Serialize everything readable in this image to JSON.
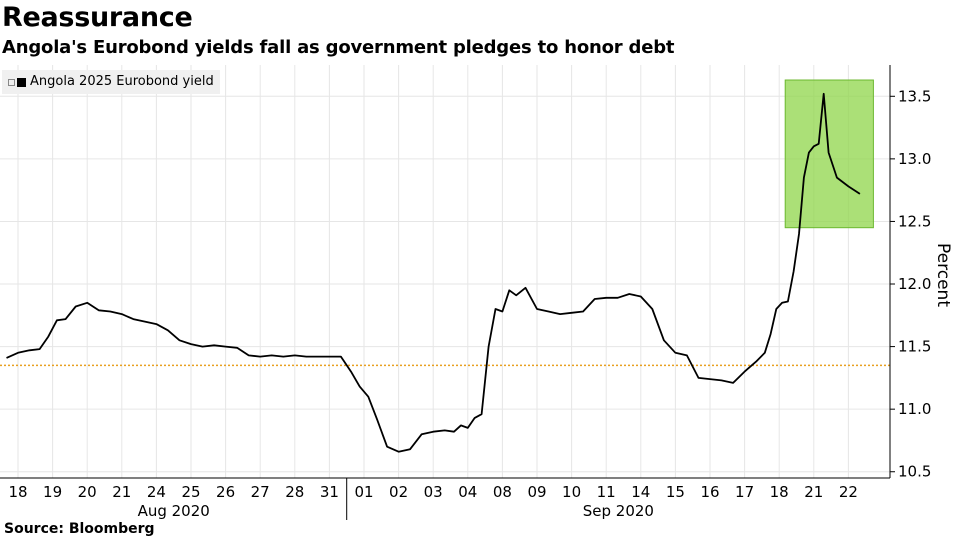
{
  "title": "Reassurance",
  "subtitle": "Angola's Eurobond yields fall as government pledges to honor debt",
  "source": "Source: Bloomberg",
  "colors": {
    "line": "#000000",
    "reference_line": "#e8a020",
    "highlight_fill": "#8fd64a",
    "highlight_stroke": "#6cb830",
    "grid": "#e6e6e6"
  },
  "chart_data": {
    "type": "line",
    "title": "Reassurance",
    "subtitle": "Angola's Eurobond yields fall as government pledges to honor debt",
    "ylabel": "Percent",
    "ylim": [
      10.45,
      13.75
    ],
    "y_ticks": [
      "10.5",
      "11.0",
      "11.5",
      "12.0",
      "12.5",
      "13.0",
      "13.5"
    ],
    "y_tick_values": [
      10.5,
      11.0,
      11.5,
      12.0,
      12.5,
      13.0,
      13.5
    ],
    "x_tick_labels": [
      "18",
      "19",
      "20",
      "21",
      "24",
      "25",
      "26",
      "27",
      "28",
      "31",
      "01",
      "02",
      "03",
      "04",
      "08",
      "09",
      "10",
      "11",
      "14",
      "15",
      "16",
      "17",
      "18",
      "21",
      "22"
    ],
    "month_labels": [
      "Aug 2020",
      "Sep 2020"
    ],
    "legend": [
      "Angola 2025 Eurobond yield"
    ],
    "legend_position": "top-left",
    "reference_line": 11.35,
    "highlight": {
      "x_range": [
        "Sep 18",
        "Sep 22"
      ],
      "y_range": [
        12.45,
        13.63
      ]
    },
    "series": [
      {
        "name": "Angola 2025 Eurobond yield",
        "x": [
          "Aug 18",
          "Aug 18",
          "Aug 18",
          "Aug 19",
          "Aug 19",
          "Aug 19",
          "Aug 19",
          "Aug 20",
          "Aug 20",
          "Aug 20",
          "Aug 21",
          "Aug 21",
          "Aug 21",
          "Aug 24",
          "Aug 24",
          "Aug 24",
          "Aug 25",
          "Aug 25",
          "Aug 25",
          "Aug 26",
          "Aug 26",
          "Aug 26",
          "Aug 27",
          "Aug 27",
          "Aug 27",
          "Aug 28",
          "Aug 28",
          "Aug 28",
          "Aug 31",
          "Aug 31",
          "Aug 31",
          "Sep 01",
          "Sep 01",
          "Sep 01",
          "Sep 01",
          "Sep 02",
          "Sep 02",
          "Sep 02",
          "Sep 03",
          "Sep 03",
          "Sep 03",
          "Sep 04",
          "Sep 04",
          "Sep 04",
          "Sep 04",
          "Sep 04",
          "Sep 08",
          "Sep 08",
          "Sep 08",
          "Sep 08",
          "Sep 08",
          "Sep 09",
          "Sep 09",
          "Sep 09",
          "Sep 10",
          "Sep 10",
          "Sep 10",
          "Sep 11",
          "Sep 11",
          "Sep 11",
          "Sep 14",
          "Sep 14",
          "Sep 14",
          "Sep 15",
          "Sep 15",
          "Sep 15",
          "Sep 16",
          "Sep 16",
          "Sep 16",
          "Sep 17",
          "Sep 17",
          "Sep 17",
          "Sep 18",
          "Sep 18",
          "Sep 18",
          "Sep 18",
          "Sep 18",
          "Sep 18",
          "Sep 21",
          "Sep 21",
          "Sep 21",
          "Sep 21",
          "Sep 21",
          "Sep 21",
          "Sep 21",
          "Sep 22",
          "Sep 22",
          "Sep 22"
        ],
        "values": [
          11.41,
          11.45,
          11.47,
          11.48,
          11.58,
          11.71,
          11.72,
          11.82,
          11.85,
          11.79,
          11.78,
          11.76,
          11.72,
          11.7,
          11.68,
          11.63,
          11.55,
          11.52,
          11.5,
          11.51,
          11.5,
          11.49,
          11.43,
          11.42,
          11.43,
          11.42,
          11.43,
          11.42,
          11.42,
          11.42,
          11.42,
          11.3,
          11.18,
          11.1,
          10.92,
          10.7,
          10.66,
          10.68,
          10.8,
          10.82,
          10.83,
          10.82,
          10.87,
          10.85,
          10.93,
          10.96,
          11.5,
          11.8,
          11.78,
          11.95,
          11.91,
          11.97,
          11.8,
          11.78,
          11.76,
          11.77,
          11.78,
          11.88,
          11.89,
          11.89,
          11.92,
          11.9,
          11.8,
          11.55,
          11.45,
          11.43,
          11.25,
          11.24,
          11.23,
          11.21,
          11.3,
          11.38,
          11.45,
          11.6,
          11.8,
          11.85,
          11.86,
          12.1,
          12.4,
          12.85,
          13.05,
          13.1,
          13.12,
          13.52,
          13.05,
          12.85,
          12.78,
          12.72
        ]
      }
    ]
  }
}
